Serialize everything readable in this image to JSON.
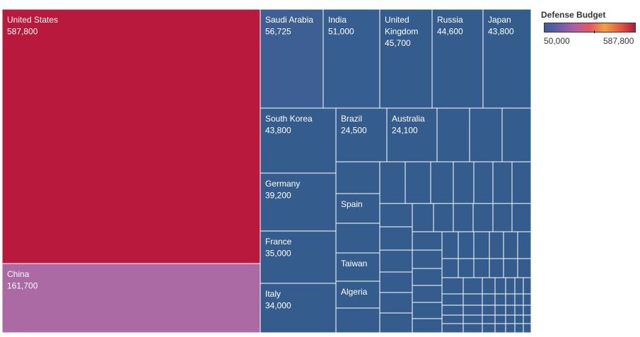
{
  "chart_data": {
    "type": "treemap",
    "measure": "Defense Budget",
    "color_scale": {
      "min": 50000,
      "max": 587800,
      "min_label": "50,000",
      "max_label": "587,800",
      "stops": [
        "#3b5a9a",
        "#6d5fa6",
        "#b25ca3",
        "#e8545f",
        "#f2a23c",
        "#e65a3f",
        "#b3193d"
      ]
    },
    "labeled_items": [
      {
        "name": "United States",
        "value": 587800,
        "value_label": "587,800",
        "color": "#b8193d"
      },
      {
        "name": "China",
        "value": 161700,
        "value_label": "161,700",
        "color": "#ab6aa4"
      },
      {
        "name": "Saudi Arabia",
        "value": 56725,
        "value_label": "56,725",
        "color": "#3d5f93"
      },
      {
        "name": "India",
        "value": 51000,
        "value_label": "51,000",
        "color": "#375e90"
      },
      {
        "name": "United\nKingdom",
        "value": 45700,
        "value_label": "45,700",
        "color": "#345d8e"
      },
      {
        "name": "Russia",
        "value": 44600,
        "value_label": "44,600",
        "color": "#345d8e"
      },
      {
        "name": "Japan",
        "value": 43800,
        "value_label": "43,800",
        "color": "#345d8e"
      },
      {
        "name": "South Korea",
        "value": 43800,
        "value_label": "43,800",
        "color": "#345d8e"
      },
      {
        "name": "Germany",
        "value": 39200,
        "value_label": "39,200",
        "color": "#345d8e"
      },
      {
        "name": "France",
        "value": 35000,
        "value_label": "35,000",
        "color": "#345d8e"
      },
      {
        "name": "Italy",
        "value": 34000,
        "value_label": "34,000",
        "color": "#345d8e"
      },
      {
        "name": "Brazil",
        "value": 24500,
        "value_label": "24,500",
        "color": "#345d8e"
      },
      {
        "name": "Australia",
        "value": 24100,
        "value_label": "24,100",
        "color": "#345d8e"
      },
      {
        "name": "Spain",
        "value": 15000,
        "value_label": "",
        "color": "#345d8e"
      },
      {
        "name": "Taiwan",
        "value": 10000,
        "value_label": "",
        "color": "#345d8e"
      },
      {
        "name": "Algeria",
        "value": 9500,
        "value_label": "",
        "color": "#345d8e"
      }
    ],
    "unlabeled_item_color": "#345d8e"
  }
}
